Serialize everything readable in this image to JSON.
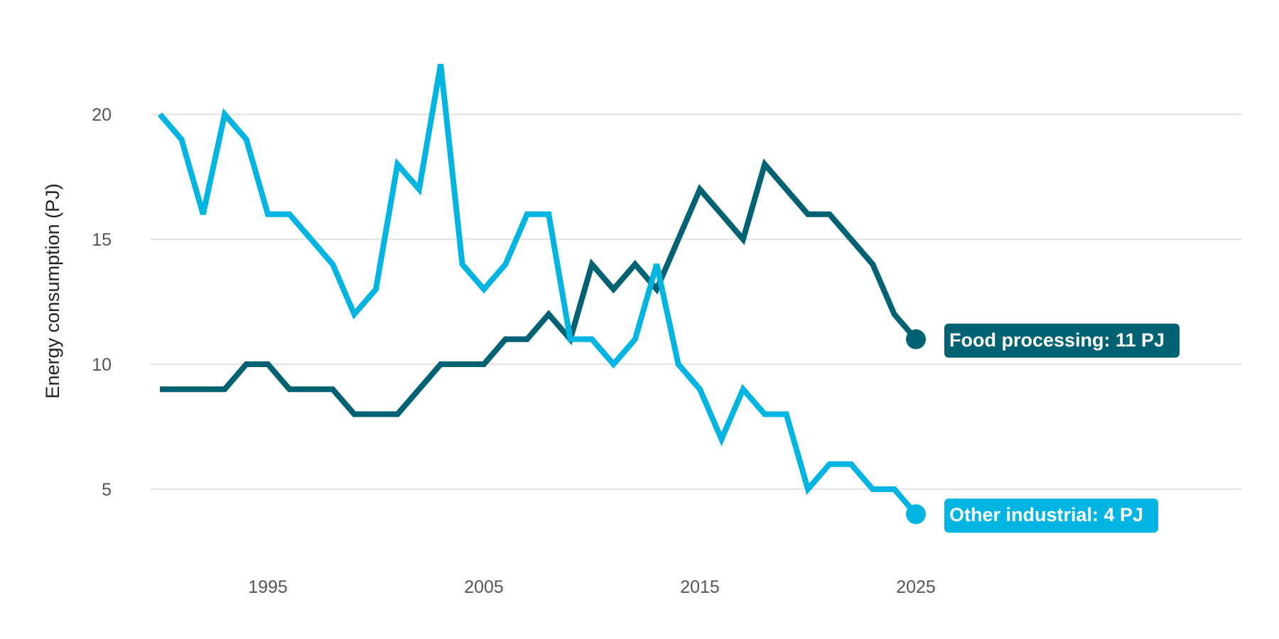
{
  "chart_data": {
    "type": "line",
    "ylabel": "Energy consumption (PJ)",
    "xlim": [
      1990,
      2040
    ],
    "ylim": [
      2.5,
      22.5
    ],
    "x_ticks": [
      1995,
      2005,
      2015,
      2025
    ],
    "x_tick_labels": [
      "1995",
      "2005",
      "2015",
      "2025"
    ],
    "y_ticks": [
      5,
      10,
      15,
      20
    ],
    "y_tick_labels": [
      "5",
      "10",
      "15",
      "20"
    ],
    "grid": "horizontal",
    "legend": "none",
    "x": [
      1990,
      1991,
      1992,
      1993,
      1994,
      1995,
      1996,
      1997,
      1998,
      1999,
      2000,
      2001,
      2002,
      2003,
      2004,
      2005,
      2006,
      2007,
      2008,
      2009,
      2010,
      2011,
      2012,
      2013,
      2014,
      2015,
      2016,
      2017,
      2018,
      2019,
      2020,
      2021,
      2022,
      2023,
      2024,
      2025
    ],
    "series": [
      {
        "key": "food",
        "color": "#006272",
        "values": [
          9,
          9,
          9,
          9,
          10,
          10,
          9,
          9,
          9,
          8,
          8,
          8,
          9,
          10,
          10,
          10,
          11,
          11,
          12,
          11,
          14,
          13,
          14,
          13,
          15,
          17,
          16,
          15,
          18,
          17,
          16,
          16,
          15,
          14,
          12,
          11
        ],
        "end_label": "Food processing: 11 PJ"
      },
      {
        "key": "other",
        "color": "#00b5e2",
        "values": [
          20,
          19,
          16,
          20,
          19,
          16,
          16,
          15,
          14,
          12,
          13,
          18,
          17,
          22,
          14,
          13,
          14,
          16,
          16,
          11,
          11,
          10,
          11,
          14,
          10,
          9,
          7,
          9,
          8,
          8,
          5,
          6,
          6,
          5,
          5,
          4
        ],
        "end_label": "Other industrial: 4 PJ"
      }
    ]
  }
}
